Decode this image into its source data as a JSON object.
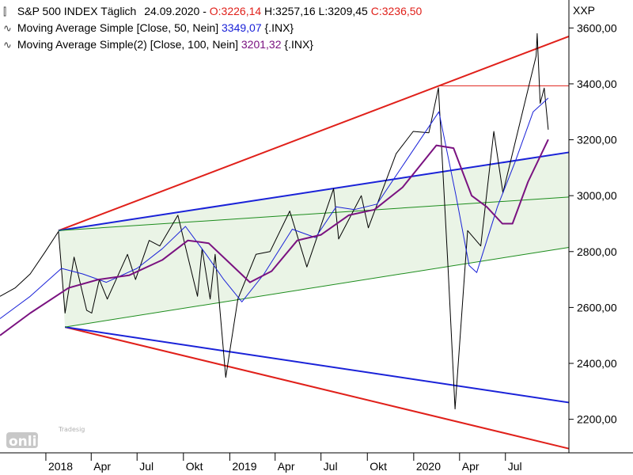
{
  "header": {
    "title": "S&P 500 INDEX Täglich",
    "date": "24.09.2020",
    "ohlc": [
      {
        "label": "O",
        "value": "3226,14",
        "color": "red"
      },
      {
        "label": "H",
        "value": "3257,16",
        "color": "black"
      },
      {
        "label": "L",
        "value": "3209,45",
        "color": "black"
      },
      {
        "label": "C",
        "value": "3236,50",
        "color": "red"
      }
    ],
    "ohlc_text": "O:3226,14 H:3257,16 L:3209,45 C:3236,50"
  },
  "legend": [
    {
      "label": "Moving Average Simple [Close, 50, Nein]",
      "value": "3349,07",
      "suffix": "{.INX}",
      "color": "#1a22d8"
    },
    {
      "label": "Moving Average Simple(2) [Close, 100, Nein]",
      "value": "3201,32",
      "suffix": "{.INX}",
      "color": "#7a1280"
    }
  ],
  "watermark": {
    "line1": "Tradesignal",
    "line2": "online"
  },
  "chart_data": {
    "type": "line",
    "title": "S&P 500 INDEX Täglich",
    "y_axis_label": "XXP",
    "ylim": [
      2080,
      3700
    ],
    "y_ticks": [
      "2200,00",
      "2400,00",
      "2600,00",
      "2800,00",
      "3000,00",
      "3200,00",
      "3400,00",
      "3600,00"
    ],
    "y_tick_values": [
      2200,
      2400,
      2600,
      2800,
      3000,
      3200,
      3400,
      3600
    ],
    "x_ticks": [
      "2018",
      "Apr",
      "Jul",
      "Okt",
      "2019",
      "Apr",
      "Jul",
      "Okt",
      "2020",
      "Apr",
      "Jul"
    ],
    "x_tick_dates": [
      "2018-01-01",
      "2018-04-01",
      "2018-07-01",
      "2018-10-01",
      "2019-01-01",
      "2019-04-01",
      "2019-07-01",
      "2019-10-01",
      "2020-01-01",
      "2020-04-01",
      "2020-07-01"
    ],
    "x_range": [
      "2017-10-02",
      "2020-11-04"
    ],
    "grid": false,
    "series": [
      {
        "name": "S&P 500 INDEX",
        "color": "#000000",
        "points": [
          [
            "2017-10-02",
            2640
          ],
          [
            "2017-11-01",
            2670
          ],
          [
            "2017-12-01",
            2720
          ],
          [
            "2017-12-31",
            2800
          ],
          [
            "2018-01-26",
            2872
          ],
          [
            "2018-02-08",
            2580
          ],
          [
            "2018-02-26",
            2780
          ],
          [
            "2018-03-23",
            2590
          ],
          [
            "2018-04-02",
            2580
          ],
          [
            "2018-04-17",
            2700
          ],
          [
            "2018-05-03",
            2630
          ],
          [
            "2018-06-12",
            2790
          ],
          [
            "2018-06-28",
            2700
          ],
          [
            "2018-07-25",
            2840
          ],
          [
            "2018-08-15",
            2820
          ],
          [
            "2018-09-20",
            2930
          ],
          [
            "2018-10-10",
            2780
          ],
          [
            "2018-10-29",
            2640
          ],
          [
            "2018-11-07",
            2810
          ],
          [
            "2018-11-23",
            2630
          ],
          [
            "2018-12-03",
            2790
          ],
          [
            "2018-12-24",
            2350
          ],
          [
            "2019-01-17",
            2630
          ],
          [
            "2019-02-22",
            2790
          ],
          [
            "2019-03-22",
            2800
          ],
          [
            "2019-04-30",
            2945
          ],
          [
            "2019-06-03",
            2745
          ],
          [
            "2019-07-26",
            3025
          ],
          [
            "2019-08-05",
            2845
          ],
          [
            "2019-09-19",
            3000
          ],
          [
            "2019-10-03",
            2885
          ],
          [
            "2019-11-27",
            3150
          ],
          [
            "2019-12-31",
            3230
          ],
          [
            "2020-01-31",
            3225
          ],
          [
            "2020-02-19",
            3386
          ],
          [
            "2020-03-09",
            2745
          ],
          [
            "2020-03-23",
            2237
          ],
          [
            "2020-04-17",
            2875
          ],
          [
            "2020-05-13",
            2820
          ],
          [
            "2020-06-08",
            3230
          ],
          [
            "2020-06-26",
            3010
          ],
          [
            "2020-07-31",
            3270
          ],
          [
            "2020-08-31",
            3500
          ],
          [
            "2020-09-02",
            3580
          ],
          [
            "2020-09-08",
            3330
          ],
          [
            "2020-09-16",
            3385
          ],
          [
            "2020-09-24",
            3236
          ]
        ]
      },
      {
        "name": "Moving Average Simple [Close, 50, Nein]",
        "color": "#1a22d8",
        "points": [
          [
            "2017-10-02",
            2560
          ],
          [
            "2017-12-01",
            2640
          ],
          [
            "2018-02-01",
            2740
          ],
          [
            "2018-03-15",
            2720
          ],
          [
            "2018-05-01",
            2690
          ],
          [
            "2018-07-01",
            2740
          ],
          [
            "2018-08-20",
            2810
          ],
          [
            "2018-10-05",
            2890
          ],
          [
            "2018-11-15",
            2790
          ],
          [
            "2018-12-20",
            2700
          ],
          [
            "2019-01-25",
            2620
          ],
          [
            "2019-03-10",
            2720
          ],
          [
            "2019-05-05",
            2880
          ],
          [
            "2019-06-20",
            2850
          ],
          [
            "2019-07-31",
            2960
          ],
          [
            "2019-09-05",
            2950
          ],
          [
            "2019-10-20",
            2970
          ],
          [
            "2019-12-15",
            3120
          ],
          [
            "2020-02-20",
            3300
          ],
          [
            "2020-03-25",
            3000
          ],
          [
            "2020-04-20",
            2750
          ],
          [
            "2020-05-05",
            2725
          ],
          [
            "2020-06-15",
            2960
          ],
          [
            "2020-07-20",
            3120
          ],
          [
            "2020-08-25",
            3300
          ],
          [
            "2020-09-24",
            3349
          ]
        ]
      },
      {
        "name": "Moving Average Simple(2) [Close, 100, Nein]",
        "color": "#7a1280",
        "points": [
          [
            "2017-10-02",
            2500
          ],
          [
            "2017-12-01",
            2580
          ],
          [
            "2018-02-15",
            2670
          ],
          [
            "2018-04-15",
            2700
          ],
          [
            "2018-06-15",
            2715
          ],
          [
            "2018-08-20",
            2770
          ],
          [
            "2018-10-10",
            2840
          ],
          [
            "2018-11-20",
            2830
          ],
          [
            "2018-12-31",
            2760
          ],
          [
            "2019-02-10",
            2690
          ],
          [
            "2019-03-25",
            2730
          ],
          [
            "2019-05-15",
            2840
          ],
          [
            "2019-07-01",
            2860
          ],
          [
            "2019-08-25",
            2930
          ],
          [
            "2019-10-15",
            2950
          ],
          [
            "2019-12-10",
            3030
          ],
          [
            "2020-02-15",
            3180
          ],
          [
            "2020-03-20",
            3170
          ],
          [
            "2020-04-25",
            3000
          ],
          [
            "2020-05-25",
            2960
          ],
          [
            "2020-06-25",
            2900
          ],
          [
            "2020-07-15",
            2900
          ],
          [
            "2020-08-15",
            3050
          ],
          [
            "2020-09-24",
            3201
          ]
        ]
      }
    ],
    "annotations": [
      {
        "name": "upper-red-trendline",
        "kind": "trendline",
        "color": "#e0201a",
        "from": [
          "2018-01-26",
          2875
        ],
        "to": [
          "2020-11-04",
          3570
        ]
      },
      {
        "name": "lower-red-trendline",
        "kind": "trendline",
        "color": "#e0201a",
        "from": [
          "2018-02-08",
          2530
        ],
        "to": [
          "2020-11-04",
          2095
        ]
      },
      {
        "name": "upper-blue-trendline",
        "kind": "trendline",
        "color": "#1a22d8",
        "from": [
          "2018-01-26",
          2875
        ],
        "to": [
          "2020-11-04",
          3155
        ]
      },
      {
        "name": "lower-blue-trendline",
        "kind": "trendline",
        "color": "#1a22d8",
        "from": [
          "2018-02-08",
          2530
        ],
        "to": [
          "2020-11-04",
          2260
        ]
      },
      {
        "name": "middle-green-trendline",
        "kind": "trendline",
        "color": "#1c8c1c",
        "from": [
          "2018-01-26",
          2875
        ],
        "to": [
          "2020-11-04",
          2995
        ]
      },
      {
        "name": "lower-green-trendline",
        "kind": "trendline",
        "color": "#1c8c1c",
        "from": [
          "2018-02-08",
          2530
        ],
        "to": [
          "2020-11-04",
          2815
        ]
      },
      {
        "name": "horizontal-red-line",
        "kind": "hline",
        "color": "#e0201a",
        "from": [
          "2020-02-19",
          3393
        ],
        "to": [
          "2020-11-04",
          3393
        ]
      }
    ],
    "channel_fill": {
      "color": "#eaf4e6",
      "upper": "upper-blue-trendline",
      "lower": "lower-green-trendline"
    }
  }
}
